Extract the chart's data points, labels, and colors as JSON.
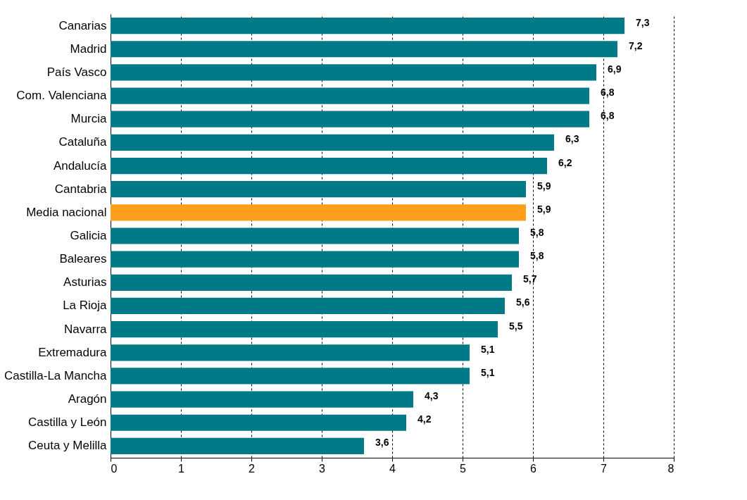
{
  "chart_data": {
    "type": "bar",
    "orientation": "horizontal",
    "categories": [
      "Canarias",
      "Madrid",
      "País Vasco",
      "Com. Valenciana",
      "Murcia",
      "Cataluña",
      "Andalucía",
      "Cantabria",
      "Media nacional",
      "Galicia",
      "Baleares",
      "Asturias",
      "La Rioja",
      "Navarra",
      "Extremadura",
      "Castilla-La Mancha",
      "Aragón",
      "Castilla y León",
      "Ceuta y Melilla"
    ],
    "values": [
      7.3,
      7.2,
      6.9,
      6.8,
      6.8,
      6.3,
      6.2,
      5.9,
      5.9,
      5.8,
      5.8,
      5.7,
      5.6,
      5.5,
      5.1,
      5.1,
      4.3,
      4.2,
      3.6
    ],
    "value_labels": [
      "7,3",
      "7,2",
      "6,9",
      "6,8",
      "6,8",
      "6,3",
      "6,2",
      "5,9",
      "5,9",
      "5,8",
      "5,8",
      "5,7",
      "5,6",
      "5,5",
      "5,1",
      "5,1",
      "4,3",
      "4,2",
      "3,6"
    ],
    "colors": [
      "#007a87",
      "#007a87",
      "#007a87",
      "#007a87",
      "#007a87",
      "#007a87",
      "#007a87",
      "#007a87",
      "#ff9e1b",
      "#007a87",
      "#007a87",
      "#007a87",
      "#007a87",
      "#007a87",
      "#007a87",
      "#007a87",
      "#007a87",
      "#007a87",
      "#007a87"
    ],
    "xlim": [
      0,
      8
    ],
    "xticks": [
      0,
      1,
      2,
      3,
      4,
      5,
      6,
      7,
      8
    ],
    "grid": "x"
  }
}
